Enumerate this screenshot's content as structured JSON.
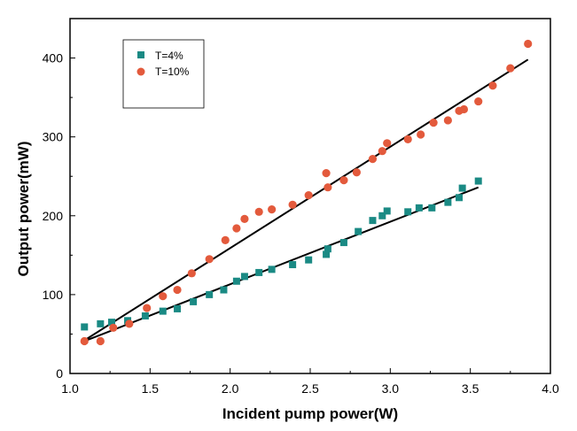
{
  "chart_data": {
    "type": "scatter",
    "title": "",
    "xlabel": "Incident pump power(W)",
    "ylabel": "Output power(mW)",
    "xlim": [
      1.0,
      4.0
    ],
    "ylim": [
      0,
      450
    ],
    "xticks": [
      "1.0",
      "1.5",
      "2.0",
      "2.5",
      "3.0",
      "3.5",
      "4.0"
    ],
    "yticks": [
      "0",
      "100",
      "200",
      "300",
      "400"
    ],
    "grid": false,
    "legend_position": "top-left",
    "series": [
      {
        "name": "T=4%",
        "marker": "square",
        "color": "#1a8a84",
        "x": [
          1.09,
          1.19,
          1.26,
          1.36,
          1.47,
          1.58,
          1.67,
          1.77,
          1.87,
          1.96,
          2.04,
          2.09,
          2.18,
          2.26,
          2.39,
          2.49,
          2.6,
          2.61,
          2.71,
          2.8,
          2.89,
          2.95,
          2.98,
          3.11,
          3.18,
          3.26,
          3.36,
          3.43,
          3.45,
          3.55
        ],
        "y": [
          59,
          63,
          65,
          67,
          73,
          79,
          82,
          91,
          100,
          106,
          117,
          123,
          128,
          132,
          138,
          144,
          151,
          158,
          166,
          180,
          194,
          200,
          206,
          205,
          210,
          210,
          217,
          223,
          235,
          244
        ],
        "fit": {
          "x": [
            1.09,
            3.55
          ],
          "y": [
            41,
            236
          ]
        }
      },
      {
        "name": "T=10%",
        "marker": "circle",
        "color": "#e35a3c",
        "x": [
          1.09,
          1.19,
          1.27,
          1.37,
          1.48,
          1.58,
          1.67,
          1.76,
          1.87,
          1.97,
          2.04,
          2.09,
          2.18,
          2.26,
          2.39,
          2.49,
          2.61,
          2.6,
          2.71,
          2.79,
          2.89,
          2.95,
          2.98,
          3.11,
          3.19,
          3.27,
          3.36,
          3.43,
          3.46,
          3.55,
          3.64,
          3.75,
          3.86
        ],
        "y": [
          41,
          41,
          58,
          63,
          83,
          98,
          106,
          127,
          145,
          169,
          184,
          196,
          205,
          208,
          214,
          226,
          236,
          254,
          245,
          255,
          272,
          282,
          292,
          297,
          303,
          318,
          321,
          333,
          335,
          345,
          365,
          387,
          418
        ],
        "fit": {
          "x": [
            1.09,
            3.86
          ],
          "y": [
            42,
            398
          ]
        }
      }
    ]
  }
}
